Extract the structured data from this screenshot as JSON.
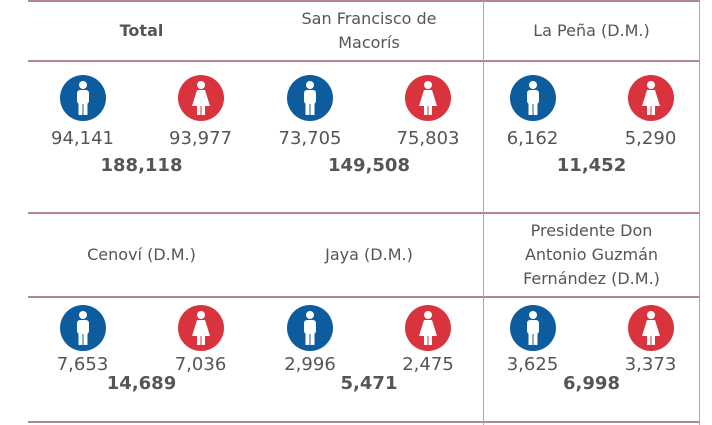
{
  "regions": [
    {
      "name": "Total",
      "male": "94,141",
      "female": "93,977",
      "total": "188,118"
    },
    {
      "name": "San Francisco de Macorís",
      "male": "73,705",
      "female": "75,803",
      "total": "149,508"
    },
    {
      "name": "La Peña (D.M.)",
      "male": "6,162",
      "female": "5,290",
      "total": "11,452"
    },
    {
      "name": "Cenoví (D.M.)",
      "male": "7,653",
      "female": "7,036",
      "total": "14,689"
    },
    {
      "name": "Jaya (D.M.)",
      "male": "2,996",
      "female": "2,475",
      "total": "5,471"
    },
    {
      "name": "Presidente Don Antonio Guzmán Fernández (D.M.)",
      "male": "3,625",
      "female": "3,373",
      "total": "6,998"
    }
  ]
}
